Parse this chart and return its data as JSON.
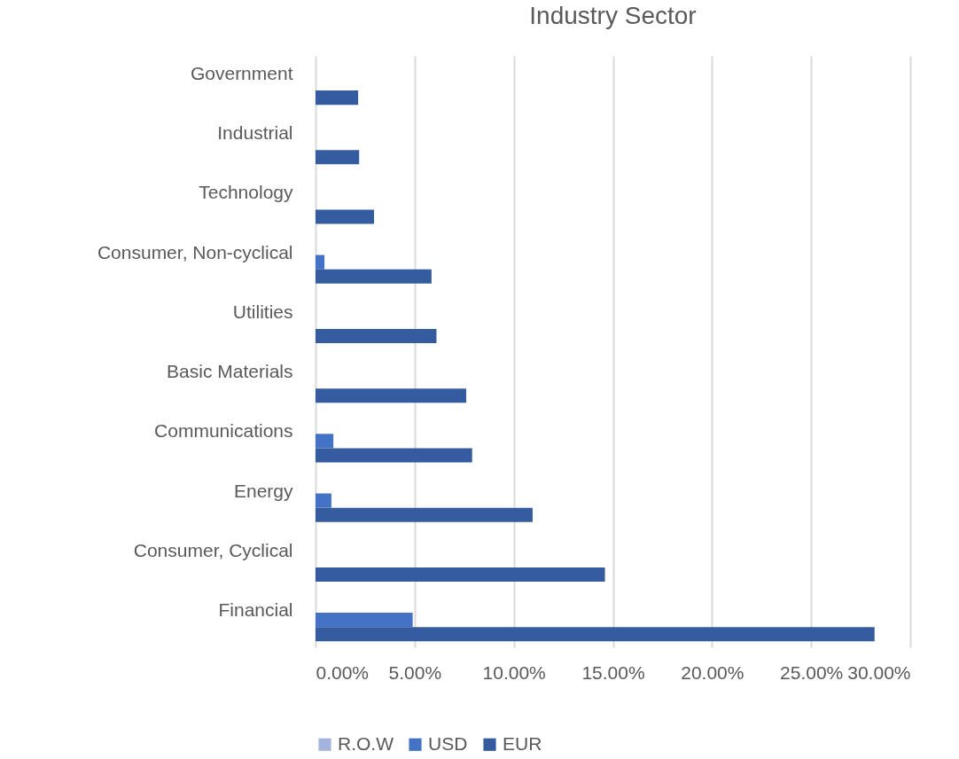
{
  "chart_data": {
    "type": "bar",
    "orientation": "horizontal",
    "title": "Industry Sector",
    "categories": [
      "Government",
      "Industrial",
      "Technology",
      "Consumer, Non-cyclical",
      "Utilities",
      "Basic Materials",
      "Communications",
      "Energy",
      "Consumer, Cyclical",
      "Financial"
    ],
    "series": [
      {
        "name": "R.O.W",
        "color": "#a5b4dc",
        "values": [
          null,
          null,
          null,
          null,
          null,
          null,
          null,
          null,
          null,
          null
        ]
      },
      {
        "name": "USD",
        "color": "#4472c4",
        "values": [
          null,
          null,
          null,
          0.45,
          null,
          null,
          0.9,
          0.8,
          null,
          4.9
        ]
      },
      {
        "name": "EUR",
        "color": "#345c9f",
        "values": [
          2.15,
          2.2,
          2.95,
          5.85,
          6.1,
          7.6,
          7.9,
          10.95,
          14.6,
          28.2
        ]
      }
    ],
    "xlim": [
      0,
      30
    ],
    "xticks": [
      {
        "value": 0,
        "label": "0.00%"
      },
      {
        "value": 5,
        "label": "5.00%"
      },
      {
        "value": 10,
        "label": "10.00%"
      },
      {
        "value": 15,
        "label": "15.00%"
      },
      {
        "value": 20,
        "label": "20.00%"
      },
      {
        "value": 25,
        "label": "25.00%"
      },
      {
        "value": 30,
        "label": "30.00%"
      }
    ],
    "grid": "x",
    "legend": "bottom"
  }
}
